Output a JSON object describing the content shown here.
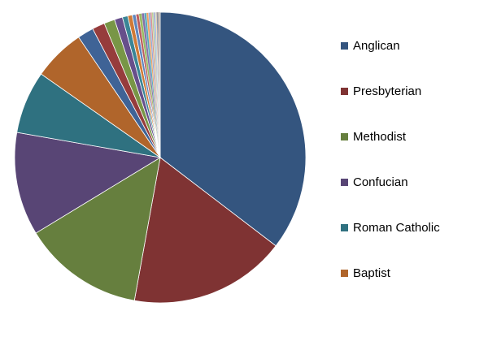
{
  "chart_data": {
    "type": "pie",
    "title": "",
    "legend_position": "right",
    "start_angle_deg": 0,
    "direction": "clockwise",
    "slices": [
      {
        "label": "Anglican",
        "value": 35.5,
        "color": "#34557F"
      },
      {
        "label": "Presbyterian",
        "value": 17.5,
        "color": "#7F3333"
      },
      {
        "label": "Methodist",
        "value": 13.5,
        "color": "#667F3E"
      },
      {
        "label": "Confucian",
        "value": 11.5,
        "color": "#584575"
      },
      {
        "label": "Roman Catholic",
        "value": 7.0,
        "color": "#2F7180"
      },
      {
        "label": "Baptist",
        "value": 5.8,
        "color": "#B0652B"
      },
      {
        "label": "",
        "value": 1.8,
        "color": "#3F6396"
      },
      {
        "label": "",
        "value": 1.4,
        "color": "#963C3C"
      },
      {
        "label": "",
        "value": 1.2,
        "color": "#789646"
      },
      {
        "label": "",
        "value": 0.9,
        "color": "#674F8B"
      },
      {
        "label": "",
        "value": 0.6,
        "color": "#3A8596"
      },
      {
        "label": "",
        "value": 0.5,
        "color": "#D07A36"
      },
      {
        "label": "",
        "value": 0.4,
        "color": "#5E86BD"
      },
      {
        "label": "",
        "value": 0.35,
        "color": "#BC5E5E"
      },
      {
        "label": "",
        "value": 0.3,
        "color": "#98BB61"
      },
      {
        "label": "",
        "value": 0.28,
        "color": "#8470A8"
      },
      {
        "label": "",
        "value": 0.25,
        "color": "#55A9BC"
      },
      {
        "label": "",
        "value": 0.22,
        "color": "#F0A060"
      },
      {
        "label": "",
        "value": 0.2,
        "color": "#8FAAD6"
      },
      {
        "label": "",
        "value": 0.18,
        "color": "#D68F8F"
      },
      {
        "label": "",
        "value": 0.16,
        "color": "#B8D38F"
      },
      {
        "label": "",
        "value": 0.14,
        "color": "#A597C4"
      },
      {
        "label": "",
        "value": 0.12,
        "color": "#86C4D3"
      },
      {
        "label": "",
        "value": 0.1,
        "color": "#F7BE8D"
      },
      {
        "label": "",
        "value": 0.09,
        "color": "#34557F"
      },
      {
        "label": "",
        "value": 0.08,
        "color": "#7F3333"
      },
      {
        "label": "",
        "value": 0.07,
        "color": "#667F3E"
      },
      {
        "label": "",
        "value": 0.06,
        "color": "#584575"
      },
      {
        "label": "",
        "value": 0.05,
        "color": "#2F7180"
      },
      {
        "label": "",
        "value": 0.05,
        "color": "#B0652B"
      }
    ]
  },
  "legend": {
    "items": [
      {
        "label": "Anglican",
        "color": "#34557F"
      },
      {
        "label": "Presbyterian",
        "color": "#7F3333"
      },
      {
        "label": "Methodist",
        "color": "#667F3E"
      },
      {
        "label": "Confucian",
        "color": "#584575"
      },
      {
        "label": "Roman Catholic",
        "color": "#2F7180"
      },
      {
        "label": "Baptist",
        "color": "#B0652B"
      }
    ]
  }
}
